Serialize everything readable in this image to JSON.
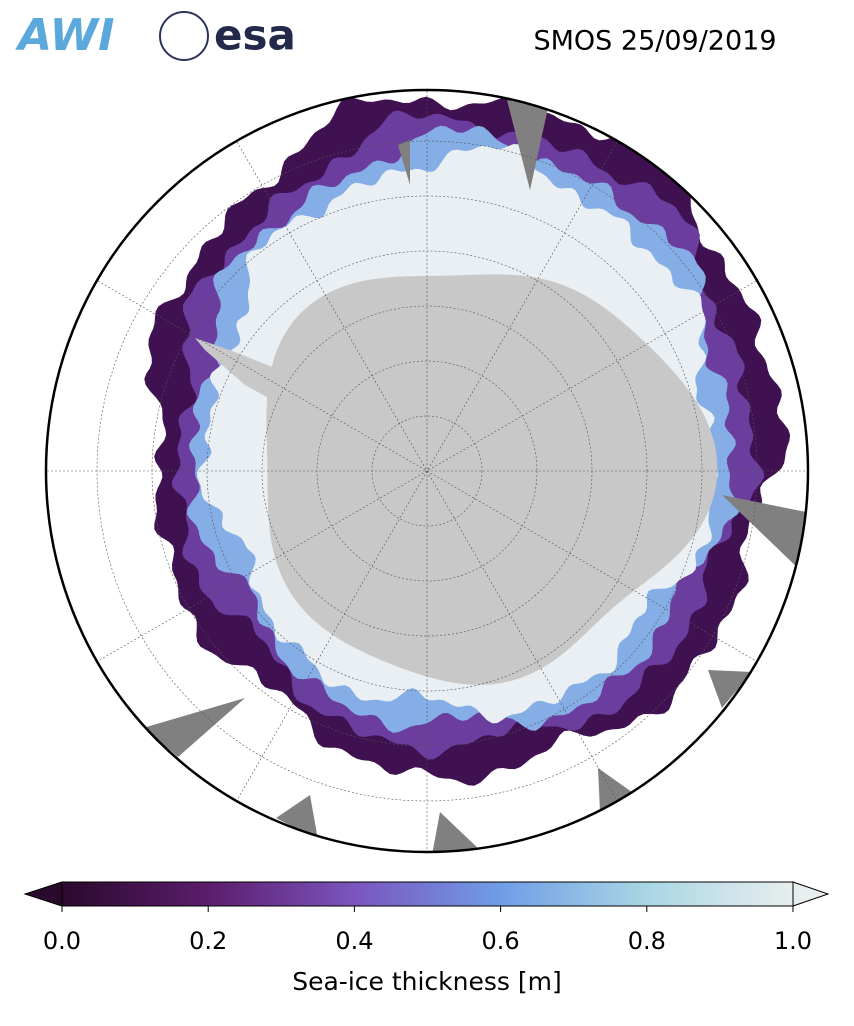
{
  "logos": {
    "awi": "AWI",
    "esa": "esa"
  },
  "title": "SMOS 25/09/2019",
  "colorbar": {
    "label": "Sea-ice thickness [m]",
    "lim": [
      0,
      1
    ],
    "ticks": [
      {
        "value": 0,
        "label": "0.0"
      },
      {
        "value": 0.2,
        "label": "0.2"
      },
      {
        "value": 0.4,
        "label": "0.4"
      },
      {
        "value": 0.6,
        "label": "0.6"
      },
      {
        "value": 0.8,
        "label": "0.8"
      },
      {
        "value": 1,
        "label": "1.0"
      }
    ],
    "colors": [
      "#2a0a2c",
      "#5b1d6b",
      "#7b55be",
      "#6f9de6",
      "#a9d6e4",
      "#e8eeee"
    ]
  }
}
